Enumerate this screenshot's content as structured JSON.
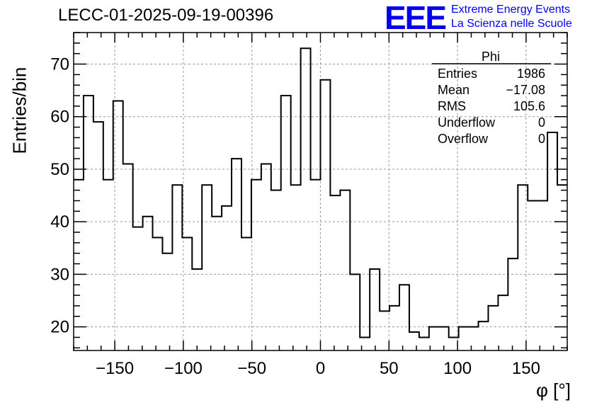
{
  "title": "LECC-01-2025-09-19-00396",
  "logo": {
    "mark": "EEE",
    "line1": "Extreme Energy Events",
    "line2": "La Scienza nelle Scuole",
    "color": "#0000ee"
  },
  "stats": {
    "title": "Phi",
    "rows": [
      {
        "name": "Entries",
        "value": "1986"
      },
      {
        "name": "Mean",
        "value": "−17.08"
      },
      {
        "name": "RMS",
        "value": "105.6"
      },
      {
        "name": "Underflow",
        "value": "0"
      },
      {
        "name": "Overflow",
        "value": "0"
      }
    ]
  },
  "chart_data": {
    "type": "bar",
    "title": "LECC-01-2025-09-19-00396",
    "xlabel": "φ [°]",
    "ylabel": "Entries/bin",
    "xlim": [
      -180,
      180
    ],
    "ylim": [
      15.5,
      76
    ],
    "bin_width": 7.2,
    "xticks": [
      -150,
      -100,
      -50,
      0,
      50,
      100,
      150
    ],
    "xtick_labels": [
      "−150",
      "−100",
      "−50",
      "0",
      "50",
      "100",
      "150"
    ],
    "yticks": [
      20,
      30,
      40,
      50,
      60,
      70
    ],
    "grid": true,
    "values": [
      48,
      64,
      59,
      48,
      63,
      51,
      39,
      41,
      37,
      34,
      47,
      37,
      31,
      47,
      41,
      43,
      52,
      37,
      48,
      51,
      46,
      64,
      47,
      73,
      48,
      67,
      45,
      46,
      30,
      18,
      31,
      23,
      24,
      28,
      19,
      18,
      20,
      20,
      18,
      20,
      20,
      21,
      24,
      26,
      33,
      47,
      44,
      44,
      57,
      47
    ]
  }
}
